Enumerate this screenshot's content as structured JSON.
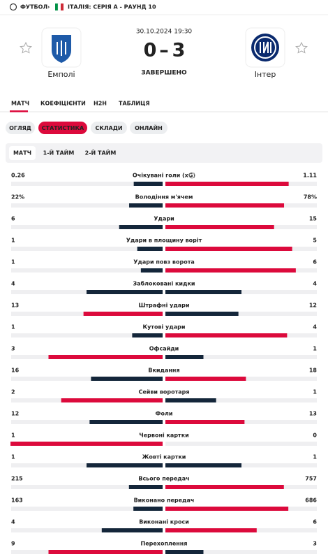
{
  "breadcrumb": {
    "sport": "ФУТБОЛ",
    "competition": "ІТАЛІЯ: СЕРІЯ А - РАУНД 10"
  },
  "match": {
    "datetime": "30.10.2024 19:30",
    "home_team": "Емполі",
    "away_team": "Інтер",
    "home_score": 0,
    "away_score": 3,
    "status": "ЗАВЕРШЕНО"
  },
  "tabs": [
    "МАТЧ",
    "КОЕФІЦІЄНТИ",
    "H2H",
    "ТАБЛИЦЯ"
  ],
  "subtabs": [
    "ОГЛЯД",
    "СТАТИСТИКА",
    "СКЛАДИ",
    "ОНЛАЙН"
  ],
  "periods": [
    "МАТЧ",
    "1-Й ТАЙМ",
    "2-Й ТАЙМ"
  ],
  "stats": [
    {
      "name": "Очікувані голи (xG)",
      "values": [
        0.26,
        1.11
      ]
    },
    {
      "name": "Володіння м'ячем",
      "values": [
        22,
        78
      ],
      "value_labels": [
        "22%",
        "78%"
      ]
    },
    {
      "name": "Удари",
      "values": [
        6,
        15
      ]
    },
    {
      "name": "Удари в площину воріт",
      "values": [
        1,
        5
      ]
    },
    {
      "name": "Удари повз ворота",
      "values": [
        1,
        6
      ]
    },
    {
      "name": "Заблоковані кидки",
      "values": [
        4,
        4
      ]
    },
    {
      "name": "Штрафні удари",
      "values": [
        13,
        12
      ]
    },
    {
      "name": "Кутові удари",
      "values": [
        1,
        4
      ]
    },
    {
      "name": "Офсайди",
      "values": [
        3,
        1
      ]
    },
    {
      "name": "Вкидання",
      "values": [
        16,
        18
      ]
    },
    {
      "name": "Сейви воротаря",
      "values": [
        2,
        1
      ]
    },
    {
      "name": "Фоли",
      "values": [
        12,
        13
      ]
    },
    {
      "name": "Червоні картки",
      "values": [
        1,
        0
      ]
    },
    {
      "name": "Жовті картки",
      "values": [
        1,
        1
      ]
    },
    {
      "name": "Всього передач",
      "values": [
        215,
        757
      ]
    },
    {
      "name": "Виконано передач",
      "values": [
        163,
        686
      ]
    },
    {
      "name": "Виконані кроси",
      "values": [
        4,
        6
      ]
    },
    {
      "name": "Перехоплення",
      "values": [
        9,
        3
      ]
    }
  ]
}
